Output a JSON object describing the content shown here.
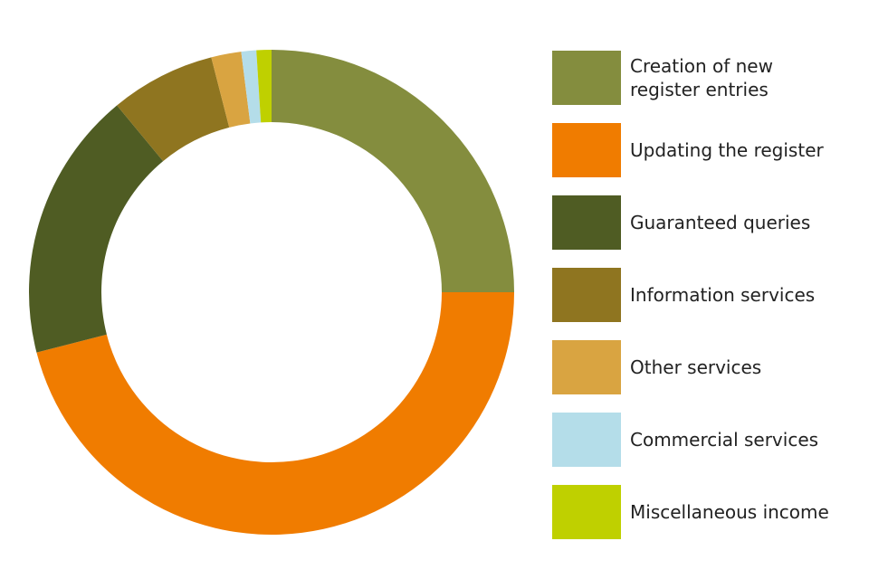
{
  "chart_data": {
    "type": "pie",
    "series": [
      {
        "name": "Creation of new register entries",
        "color": "#848d3e",
        "value": 25
      },
      {
        "name": "Updating the register",
        "color": "#f07c00",
        "value": 46
      },
      {
        "name": "Guaranteed queries",
        "color": "#4f5c23",
        "value": 18
      },
      {
        "name": "Information services",
        "color": "#8f7520",
        "value": 7
      },
      {
        "name": "Other services",
        "color": "#d9a441",
        "value": 2
      },
      {
        "name": "Commercial services",
        "color": "#b4dde9",
        "value": 1
      },
      {
        "name": "Miscellaneous income",
        "color": "#bfd000",
        "value": 1
      }
    ]
  }
}
